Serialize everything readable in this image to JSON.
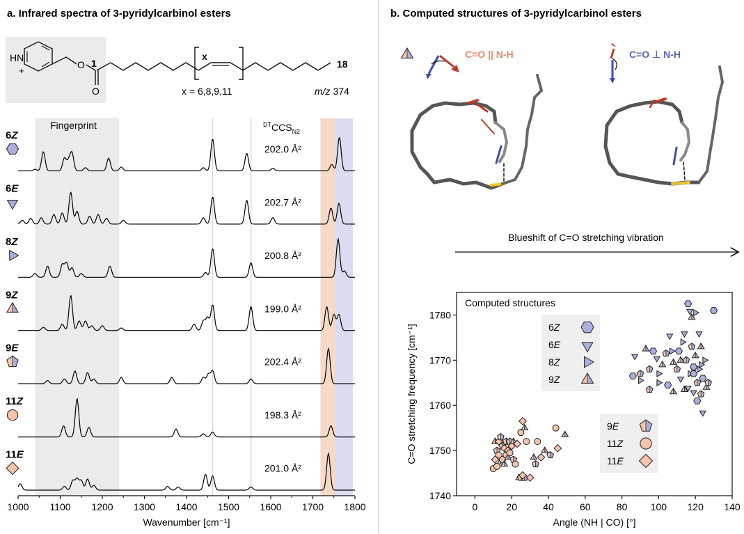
{
  "panel_a": {
    "title": "a. Infrared spectra of 3-pyridylcarbinol esters",
    "structure": {
      "carbon_start": "1",
      "carbon_end": "18",
      "bracket_label": "x",
      "x_values": "x = 6,8,9,11",
      "mz_prefix": "m/z",
      "mz_value": "374",
      "ring_nh": "HN",
      "ring_charge": "+",
      "ester_o": "O",
      "carbonyl_o": "O"
    },
    "fingerprint_label": "Fingerprint",
    "ccs_header": {
      "prefix": "DT",
      "main": "CCS",
      "sub": "N2"
    }
  },
  "panel_b": {
    "title": "b. Computed structures of 3-pyridylcarbinol esters",
    "parallel_label": "C=O || N-H",
    "perp_label": "C=O ⊥ N-H",
    "blueshift_label": "Blueshift of C=O stretching vibration"
  },
  "colors": {
    "orange": "#e8896a",
    "orange_fill": "#f5c4ad",
    "blue": "#5a66b8",
    "blue_fill": "#a9b0de",
    "orange_band": "#f6d2bd",
    "blue_band": "#d4d7f0",
    "fingerprint_band": "#ebebeb",
    "spectrum": "#000000",
    "red_arrow": "#c0392b",
    "blue_arrow": "#3b4fb0"
  },
  "chart_data": [
    {
      "type": "line",
      "xlabel": "Wavenumber [cm⁻¹]",
      "xlim": [
        1000,
        1800
      ],
      "xticks": [
        1000,
        1100,
        1200,
        1300,
        1400,
        1500,
        1600,
        1700,
        1800
      ],
      "fingerprint_range": [
        1040,
        1240
      ],
      "vertical_lines": [
        1462,
        1553
      ],
      "bands": [
        {
          "range": [
            1718,
            1752
          ],
          "color": "orange"
        },
        {
          "range": [
            1752,
            1795
          ],
          "color": "blue"
        }
      ],
      "series": [
        {
          "name": "6Z",
          "label_num": "6",
          "label_iso": "Z",
          "ccs": "202.0 Å²",
          "marker": "hexagon",
          "color": "blue",
          "peaks": [
            [
              1040,
              0.05
            ],
            [
              1060,
              0.6
            ],
            [
              1110,
              0.4
            ],
            [
              1120,
              0.3
            ],
            [
              1128,
              0.55
            ],
            [
              1160,
              0.1
            ],
            [
              1215,
              0.4
            ],
            [
              1245,
              0.12
            ],
            [
              1440,
              0.1
            ],
            [
              1462,
              1.0
            ],
            [
              1543,
              0.55
            ],
            [
              1605,
              0.08
            ],
            [
              1745,
              0.2
            ],
            [
              1763,
              1.05
            ]
          ]
        },
        {
          "name": "6E",
          "label_num": "6",
          "label_iso": "E",
          "ccs": "202.7 Å²",
          "marker": "triangle-down",
          "color": "blue",
          "peaks": [
            [
              1010,
              0.12
            ],
            [
              1030,
              0.18
            ],
            [
              1055,
              0.2
            ],
            [
              1085,
              0.3
            ],
            [
              1105,
              0.35
            ],
            [
              1125,
              1.0
            ],
            [
              1140,
              0.4
            ],
            [
              1170,
              0.25
            ],
            [
              1190,
              0.3
            ],
            [
              1210,
              0.18
            ],
            [
              1250,
              0.12
            ],
            [
              1440,
              0.2
            ],
            [
              1462,
              0.85
            ],
            [
              1543,
              0.75
            ],
            [
              1605,
              0.2
            ],
            [
              1743,
              0.5
            ],
            [
              1762,
              0.65
            ]
          ]
        },
        {
          "name": "8Z",
          "label_num": "8",
          "label_iso": "Z",
          "ccs": "200.8 Å²",
          "marker": "triangle-right",
          "color": "blue",
          "peaks": [
            [
              1040,
              0.12
            ],
            [
              1070,
              0.35
            ],
            [
              1105,
              0.4
            ],
            [
              1115,
              0.45
            ],
            [
              1128,
              0.3
            ],
            [
              1150,
              0.12
            ],
            [
              1218,
              0.35
            ],
            [
              1445,
              0.15
            ],
            [
              1462,
              0.9
            ],
            [
              1553,
              0.45
            ],
            [
              1760,
              1.2
            ],
            [
              1775,
              0.2
            ]
          ]
        },
        {
          "name": "9Z",
          "label_num": "9",
          "label_iso": "Z",
          "ccs": "199.0 Å²",
          "marker": "triangle-half",
          "color": "both",
          "peaks": [
            [
              1060,
              0.1
            ],
            [
              1105,
              0.2
            ],
            [
              1125,
              1.1
            ],
            [
              1145,
              0.3
            ],
            [
              1160,
              0.3
            ],
            [
              1175,
              0.15
            ],
            [
              1200,
              0.15
            ],
            [
              1245,
              0.08
            ],
            [
              1418,
              0.2
            ],
            [
              1440,
              0.3
            ],
            [
              1450,
              0.4
            ],
            [
              1462,
              0.8
            ],
            [
              1553,
              0.75
            ],
            [
              1733,
              0.75
            ],
            [
              1750,
              0.5
            ],
            [
              1762,
              0.5
            ]
          ]
        },
        {
          "name": "9E",
          "label_num": "9",
          "label_iso": "E",
          "ccs": "202.4 Å²",
          "marker": "pentagon-half",
          "color": "both",
          "peaks": [
            [
              1070,
              0.1
            ],
            [
              1110,
              0.15
            ],
            [
              1135,
              0.4
            ],
            [
              1165,
              0.35
            ],
            [
              1180,
              0.15
            ],
            [
              1245,
              0.2
            ],
            [
              1365,
              0.2
            ],
            [
              1440,
              0.2
            ],
            [
              1452,
              0.3
            ],
            [
              1462,
              0.4
            ],
            [
              1553,
              0.15
            ],
            [
              1737,
              1.1
            ]
          ]
        },
        {
          "name": "11Z",
          "label_num": "11",
          "label_iso": "Z",
          "ccs": "198.3 Å²",
          "marker": "circle",
          "color": "orange",
          "peaks": [
            [
              1108,
              0.35
            ],
            [
              1140,
              1.2
            ],
            [
              1168,
              0.3
            ],
            [
              1375,
              0.25
            ],
            [
              1440,
              0.1
            ],
            [
              1462,
              0.15
            ],
            [
              1743,
              0.35
            ]
          ]
        },
        {
          "name": "11E",
          "label_num": "11",
          "label_iso": "E",
          "ccs": "201.0 Å²",
          "marker": "diamond",
          "color": "orange",
          "peaks": [
            [
              1005,
              0.2
            ],
            [
              1110,
              0.12
            ],
            [
              1130,
              0.3
            ],
            [
              1140,
              0.35
            ],
            [
              1150,
              0.3
            ],
            [
              1165,
              0.35
            ],
            [
              1180,
              0.15
            ],
            [
              1355,
              0.12
            ],
            [
              1380,
              0.1
            ],
            [
              1445,
              0.5
            ],
            [
              1462,
              0.45
            ],
            [
              1553,
              0.1
            ],
            [
              1737,
              1.15
            ]
          ]
        }
      ]
    },
    {
      "type": "scatter",
      "title": "Computed structures",
      "xlabel": "Angle (NH | CO) [°]",
      "ylabel": "C=O stretching frequency [cm⁻¹]",
      "xlim": [
        -10,
        140
      ],
      "ylim": [
        1740,
        1785
      ],
      "xticks": [
        0,
        20,
        40,
        60,
        80,
        100,
        120,
        140
      ],
      "yticks": [
        1740,
        1750,
        1760,
        1770,
        1780
      ],
      "legend1": [
        {
          "name": "6Z",
          "num": "6",
          "iso": "Z",
          "marker": "hexagon"
        },
        {
          "name": "6E",
          "num": "6",
          "iso": "E",
          "marker": "triangle-down"
        },
        {
          "name": "8Z",
          "num": "8",
          "iso": "Z",
          "marker": "triangle-right"
        },
        {
          "name": "9Z",
          "num": "9",
          "iso": "Z",
          "marker": "triangle-half"
        }
      ],
      "legend2": [
        {
          "name": "9E",
          "num": "9",
          "iso": "E",
          "marker": "pentagon-half"
        },
        {
          "name": "11Z",
          "num": "11",
          "iso": "Z",
          "marker": "circle"
        },
        {
          "name": "11E",
          "num": "11",
          "iso": "E",
          "marker": "diamond"
        }
      ],
      "blue_points": [
        [
          86,
          1766.5
        ],
        [
          87,
          1771
        ],
        [
          90,
          1765.5
        ],
        [
          93,
          1772.5
        ],
        [
          95,
          1768
        ],
        [
          97,
          1772
        ],
        [
          99,
          1770.5
        ],
        [
          100,
          1767
        ],
        [
          102,
          1769
        ],
        [
          104,
          1771.5
        ],
        [
          105,
          1764.5
        ],
        [
          106,
          1775.5
        ],
        [
          107,
          1772
        ],
        [
          108,
          1769.5
        ],
        [
          110,
          1768
        ],
        [
          111,
          1772
        ],
        [
          112,
          1766
        ],
        [
          113,
          1774
        ],
        [
          114,
          1763.5
        ],
        [
          115,
          1770
        ],
        [
          116,
          1782.5
        ],
        [
          117,
          1781
        ],
        [
          117,
          1767
        ],
        [
          118,
          1779.5
        ],
        [
          118,
          1773
        ],
        [
          119,
          1768.5
        ],
        [
          119,
          1763
        ],
        [
          120,
          1780.5
        ],
        [
          120,
          1771
        ],
        [
          121,
          1765
        ],
        [
          121,
          1761
        ],
        [
          122,
          1776
        ],
        [
          122,
          1768
        ],
        [
          123,
          1773
        ],
        [
          123,
          1762.5
        ],
        [
          124,
          1766
        ],
        [
          124,
          1758.5
        ],
        [
          125,
          1770
        ],
        [
          126,
          1764
        ],
        [
          127,
          1765
        ],
        [
          130,
          1781
        ],
        [
          114,
          1776
        ],
        [
          100,
          1765
        ],
        [
          108,
          1763
        ],
        [
          95,
          1763.5
        ],
        [
          119,
          1767
        ],
        [
          116,
          1764
        ],
        [
          123,
          1769
        ],
        [
          112,
          1770
        ],
        [
          90,
          1767
        ]
      ],
      "orange_points": [
        [
          10,
          1746
        ],
        [
          11,
          1748
        ],
        [
          11,
          1752
        ],
        [
          12,
          1750
        ],
        [
          13,
          1749
        ],
        [
          13,
          1752
        ],
        [
          14,
          1747.5
        ],
        [
          15,
          1751
        ],
        [
          15,
          1748
        ],
        [
          16,
          1750.5
        ],
        [
          16,
          1747
        ],
        [
          17,
          1752
        ],
        [
          17,
          1749
        ],
        [
          18,
          1750
        ],
        [
          18,
          1748.5
        ],
        [
          19,
          1752
        ],
        [
          19,
          1749.5
        ],
        [
          20,
          1751
        ],
        [
          21,
          1752
        ],
        [
          21,
          1748
        ],
        [
          22,
          1747
        ],
        [
          23,
          1751.5
        ],
        [
          24,
          1744
        ],
        [
          25,
          1744
        ],
        [
          25,
          1754
        ],
        [
          26,
          1756.5
        ],
        [
          27,
          1755
        ],
        [
          27,
          1744
        ],
        [
          28,
          1752
        ],
        [
          30,
          1744
        ],
        [
          32,
          1748.5
        ],
        [
          33,
          1747
        ],
        [
          34,
          1752
        ],
        [
          36,
          1748.5
        ],
        [
          38,
          1750
        ],
        [
          41,
          1749
        ],
        [
          44,
          1755
        ],
        [
          45,
          1750.5
        ],
        [
          49,
          1753.5
        ],
        [
          14,
          1753
        ],
        [
          12,
          1746.5
        ],
        [
          26,
          1744.5
        ]
      ]
    }
  ]
}
